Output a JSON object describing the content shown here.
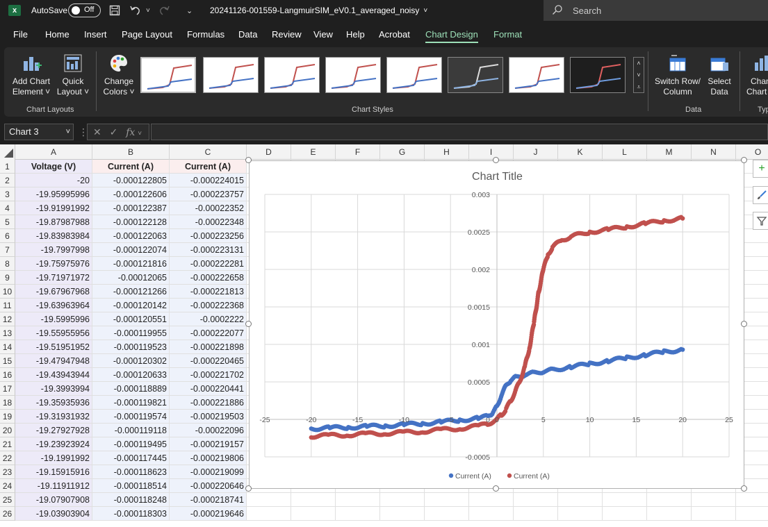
{
  "titlebar": {
    "logo": "x",
    "autosave_label": "AutoSave",
    "autosave_state": "Off",
    "filename": "20241126-001559-LangmuirSIM_eV0.1_averaged_noisy",
    "search_placeholder": "Search"
  },
  "menu": {
    "tabs": [
      "File",
      "Home",
      "Insert",
      "Page Layout",
      "Formulas",
      "Data",
      "Review",
      "View",
      "Help",
      "Acrobat",
      "Chart Design",
      "Format"
    ],
    "active": "Chart Design"
  },
  "ribbon": {
    "add_chart_element": [
      "Add Chart",
      "Element ˅"
    ],
    "quick_layout": [
      "Quick",
      "Layout ˅"
    ],
    "change_colors": [
      "Change",
      "Colors ˅"
    ],
    "group_chart_layouts": "Chart Layouts",
    "group_chart_styles": "Chart Styles",
    "switch_row_column": [
      "Switch Row/",
      "Column"
    ],
    "select_data": [
      "Select",
      "Data"
    ],
    "group_data": "Data",
    "change_chart_type": [
      "Chan",
      "Chart"
    ],
    "group_type": "Typ"
  },
  "formula": {
    "namebox": "Chart 3",
    "fx": "fx",
    "value": ""
  },
  "columns": [
    "A",
    "B",
    "C",
    "D",
    "E",
    "F",
    "G",
    "H",
    "I",
    "J",
    "K",
    "L",
    "M",
    "N",
    "O"
  ],
  "sheet": {
    "headers": [
      "Voltage (V)",
      "Current (A)",
      "Current (A)"
    ],
    "rows": [
      [
        "-20",
        "-0.000122805",
        "-0.000224015"
      ],
      [
        "-19.95995996",
        "-0.000122606",
        "-0.000223757"
      ],
      [
        "-19.91991992",
        "-0.000122387",
        "-0.00022352"
      ],
      [
        "-19.87987988",
        "-0.000122128",
        "-0.00022348"
      ],
      [
        "-19.83983984",
        "-0.000122063",
        "-0.000223256"
      ],
      [
        "-19.7997998",
        "-0.000122074",
        "-0.000223131"
      ],
      [
        "-19.75975976",
        "-0.000121816",
        "-0.000222281"
      ],
      [
        "-19.71971972",
        "-0.00012065",
        "-0.000222658"
      ],
      [
        "-19.67967968",
        "-0.000121266",
        "-0.000221813"
      ],
      [
        "-19.63963964",
        "-0.000120142",
        "-0.000222368"
      ],
      [
        "-19.5995996",
        "-0.000120551",
        "-0.0002222"
      ],
      [
        "-19.55955956",
        "-0.000119955",
        "-0.000222077"
      ],
      [
        "-19.51951952",
        "-0.000119523",
        "-0.000221898"
      ],
      [
        "-19.47947948",
        "-0.000120302",
        "-0.000220465"
      ],
      [
        "-19.43943944",
        "-0.000120633",
        "-0.000221702"
      ],
      [
        "-19.3993994",
        "-0.000118889",
        "-0.000220441"
      ],
      [
        "-19.35935936",
        "-0.000119821",
        "-0.000221886"
      ],
      [
        "-19.31931932",
        "-0.000119574",
        "-0.000219503"
      ],
      [
        "-19.27927928",
        "-0.000119118",
        "-0.00022096"
      ],
      [
        "-19.23923924",
        "-0.000119495",
        "-0.000219157"
      ],
      [
        "-19.1991992",
        "-0.000117445",
        "-0.000219806"
      ],
      [
        "-19.15915916",
        "-0.000118623",
        "-0.000219099"
      ],
      [
        "-19.11911912",
        "-0.000118514",
        "-0.000220646"
      ],
      [
        "-19.07907908",
        "-0.000118248",
        "-0.000218741"
      ],
      [
        "-19.03903904",
        "-0.000118303",
        "-0.000219646"
      ]
    ]
  },
  "chart_data": {
    "type": "scatter",
    "title": "Chart Title",
    "xlabel": "",
    "ylabel": "",
    "xlim": [
      -25,
      25
    ],
    "ylim": [
      -0.0005,
      0.003
    ],
    "x_ticks": [
      "-25",
      "-20",
      "-15",
      "-10",
      "-5",
      "0",
      "5",
      "10",
      "15",
      "20",
      "25"
    ],
    "y_ticks": [
      "-0.0005",
      "0",
      "0.0005",
      "0.001",
      "0.0015",
      "0.002",
      "0.0025",
      "0.003"
    ],
    "grid": true,
    "legend": "bottom",
    "series": [
      {
        "name": "Current (A)",
        "color": "#4472c4",
        "x": [
          -20,
          -18,
          -16,
          -14,
          -12,
          -10,
          -8,
          -6,
          -4,
          -2,
          -1,
          -0.5,
          0,
          0.5,
          1,
          1.5,
          2,
          3,
          4,
          5,
          6,
          8,
          10,
          12,
          14,
          16,
          18,
          20
        ],
        "y": [
          -0.000123,
          -0.000115,
          -0.000105,
          -9.5e-05,
          -8.5e-05,
          -7e-05,
          -5.5e-05,
          -3.5e-05,
          -1e-05,
          1.5e-05,
          4e-05,
          8e-05,
          0.00017,
          0.00033,
          0.00045,
          0.000525,
          0.000565,
          0.000595,
          0.00062,
          0.00064,
          0.00066,
          0.0007,
          0.00074,
          0.00078,
          0.00082,
          0.00086,
          0.0009,
          0.00093
        ]
      },
      {
        "name": "Current (A)",
        "color": "#c0504d",
        "x": [
          -20,
          -18,
          -16,
          -14,
          -12,
          -10,
          -8,
          -6,
          -4,
          -2,
          -1,
          0,
          0.5,
          1,
          1.5,
          2,
          2.5,
          3,
          3.5,
          4,
          4.5,
          5,
          5.5,
          6,
          7,
          8,
          10,
          12,
          14,
          16,
          18,
          20
        ],
        "y": [
          -0.000224,
          -0.000215,
          -0.000205,
          -0.000195,
          -0.000185,
          -0.000175,
          -0.00016,
          -0.00014,
          -0.00012,
          -9e-05,
          -6e-05,
          0,
          6e-05,
          0.00014,
          0.00025,
          0.00038,
          0.00052,
          0.0007,
          0.00095,
          0.0013,
          0.0017,
          0.002,
          0.0022,
          0.0023,
          0.00239,
          0.00244,
          0.0025,
          0.00253,
          0.00257,
          0.00261,
          0.00265,
          0.00268
        ]
      }
    ]
  }
}
